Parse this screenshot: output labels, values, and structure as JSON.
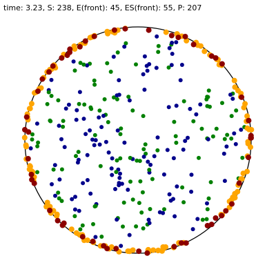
{
  "status": {
    "time_label": "time:",
    "time": "3.23",
    "s_label": "S:",
    "s": "238",
    "e_front_label": "E(front):",
    "e_front": "45",
    "es_front_label": "ES(front):",
    "es_front": "55",
    "p_label": "P:",
    "p": "207"
  },
  "colors": {
    "background": "#ffffff",
    "boundary": "#000000",
    "population_a": "#00008b",
    "population_b": "#008000",
    "front_orange": "#ffa500",
    "front_dark": "#8b0000"
  },
  "counts": {
    "interior_blue": 120,
    "interior_green": 118,
    "front_orange": 125,
    "front_dark": 55
  }
}
